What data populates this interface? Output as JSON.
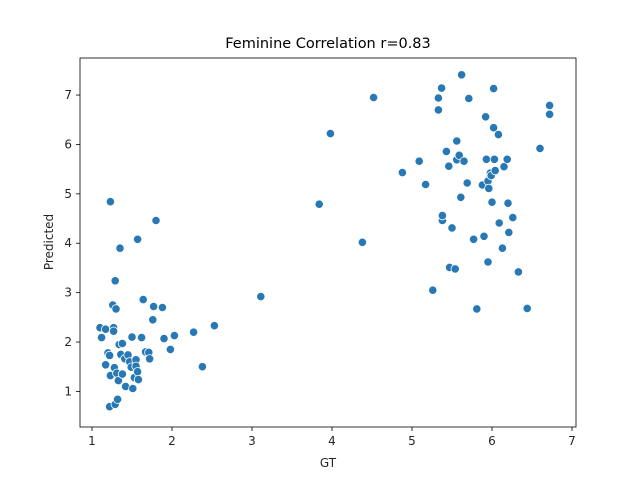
{
  "chart_data": {
    "type": "scatter",
    "title": "Feminine Correlation r=0.83",
    "xlabel": "GT",
    "ylabel": "Predicted",
    "xlim": [
      0.85,
      7.05
    ],
    "ylim": [
      0.28,
      7.75
    ],
    "xticks": [
      "1",
      "2",
      "3",
      "4",
      "5",
      "6",
      "7"
    ],
    "yticks": [
      "1",
      "2",
      "3",
      "4",
      "5",
      "6",
      "7"
    ],
    "grid": false,
    "color": "#2878b5",
    "points": [
      [
        1.1,
        2.29
      ],
      [
        1.12,
        2.09
      ],
      [
        1.17,
        2.26
      ],
      [
        1.17,
        1.54
      ],
      [
        1.2,
        1.78
      ],
      [
        1.22,
        1.73
      ],
      [
        1.22,
        0.69
      ],
      [
        1.23,
        1.32
      ],
      [
        1.23,
        4.84
      ],
      [
        1.26,
        2.75
      ],
      [
        1.27,
        2.29
      ],
      [
        1.27,
        2.22
      ],
      [
        1.28,
        1.48
      ],
      [
        1.29,
        0.74
      ],
      [
        1.29,
        3.24
      ],
      [
        1.3,
        2.67
      ],
      [
        1.31,
        1.37
      ],
      [
        1.32,
        0.84
      ],
      [
        1.33,
        1.22
      ],
      [
        1.34,
        1.95
      ],
      [
        1.35,
        3.9
      ],
      [
        1.36,
        1.75
      ],
      [
        1.38,
        1.97
      ],
      [
        1.38,
        1.35
      ],
      [
        1.41,
        1.66
      ],
      [
        1.42,
        1.1
      ],
      [
        1.45,
        1.74
      ],
      [
        1.47,
        1.6
      ],
      [
        1.49,
        1.49
      ],
      [
        1.5,
        2.1
      ],
      [
        1.51,
        1.06
      ],
      [
        1.53,
        1.28
      ],
      [
        1.55,
        1.64
      ],
      [
        1.55,
        1.51
      ],
      [
        1.57,
        1.4
      ],
      [
        1.57,
        4.08
      ],
      [
        1.58,
        1.24
      ],
      [
        1.62,
        2.09
      ],
      [
        1.64,
        2.86
      ],
      [
        1.67,
        1.8
      ],
      [
        1.71,
        1.79
      ],
      [
        1.72,
        1.66
      ],
      [
        1.76,
        2.45
      ],
      [
        1.77,
        2.72
      ],
      [
        1.8,
        4.46
      ],
      [
        1.88,
        2.7
      ],
      [
        1.9,
        2.07
      ],
      [
        1.98,
        1.85
      ],
      [
        2.03,
        2.13
      ],
      [
        2.27,
        2.2
      ],
      [
        2.38,
        1.5
      ],
      [
        2.53,
        2.33
      ],
      [
        3.11,
        2.92
      ],
      [
        3.84,
        4.79
      ],
      [
        3.98,
        6.22
      ],
      [
        4.38,
        4.02
      ],
      [
        4.52,
        6.95
      ],
      [
        4.88,
        5.43
      ],
      [
        5.09,
        5.66
      ],
      [
        5.17,
        5.19
      ],
      [
        5.26,
        3.05
      ],
      [
        5.33,
        6.94
      ],
      [
        5.33,
        6.7
      ],
      [
        5.37,
        7.14
      ],
      [
        5.38,
        4.46
      ],
      [
        5.38,
        4.56
      ],
      [
        5.43,
        5.86
      ],
      [
        5.46,
        5.56
      ],
      [
        5.47,
        3.51
      ],
      [
        5.5,
        4.31
      ],
      [
        5.54,
        3.48
      ],
      [
        5.56,
        5.69
      ],
      [
        5.56,
        6.07
      ],
      [
        5.59,
        5.78
      ],
      [
        5.61,
        4.93
      ],
      [
        5.62,
        7.41
      ],
      [
        5.65,
        5.66
      ],
      [
        5.69,
        5.22
      ],
      [
        5.71,
        6.93
      ],
      [
        5.77,
        4.08
      ],
      [
        5.81,
        2.67
      ],
      [
        5.88,
        5.18
      ],
      [
        5.9,
        4.14
      ],
      [
        5.92,
        6.56
      ],
      [
        5.93,
        5.7
      ],
      [
        5.95,
        5.26
      ],
      [
        5.95,
        3.62
      ],
      [
        5.96,
        5.11
      ],
      [
        5.98,
        5.42
      ],
      [
        5.99,
        5.37
      ],
      [
        6.0,
        4.83
      ],
      [
        6.02,
        7.13
      ],
      [
        6.02,
        6.34
      ],
      [
        6.03,
        5.7
      ],
      [
        6.04,
        5.47
      ],
      [
        6.08,
        6.2
      ],
      [
        6.09,
        4.41
      ],
      [
        6.13,
        3.9
      ],
      [
        6.15,
        5.55
      ],
      [
        6.19,
        5.7
      ],
      [
        6.2,
        4.81
      ],
      [
        6.21,
        4.22
      ],
      [
        6.26,
        4.52
      ],
      [
        6.33,
        3.42
      ],
      [
        6.44,
        2.68
      ],
      [
        6.6,
        5.92
      ],
      [
        6.72,
        6.79
      ],
      [
        6.72,
        6.61
      ]
    ]
  }
}
